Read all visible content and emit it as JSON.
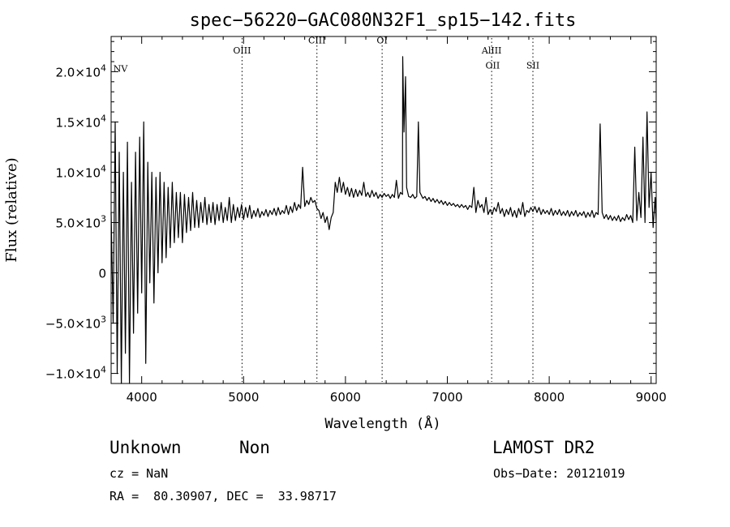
{
  "chart_data": {
    "type": "line",
    "title": "spec−56220−GAC080N32F1_sp15−142.fits",
    "xlabel": "Wavelength (Å)",
    "ylabel": "Flux (relative)",
    "xlim": [
      3700,
      9050
    ],
    "ylim": [
      -11000,
      23500
    ],
    "x_ticks": [
      {
        "value": 4000,
        "label": "4000"
      },
      {
        "value": 5000,
        "label": "5000"
      },
      {
        "value": 6000,
        "label": "6000"
      },
      {
        "value": 7000,
        "label": "7000"
      },
      {
        "value": 8000,
        "label": "8000"
      },
      {
        "value": 9000,
        "label": "9000"
      }
    ],
    "y_ticks": [
      {
        "value": -10000,
        "mantissa": "−1.0×10",
        "exp": "4"
      },
      {
        "value": -5000,
        "mantissa": "−5.0×10",
        "exp": "3"
      },
      {
        "value": 0,
        "mantissa": "0",
        "exp": ""
      },
      {
        "value": 5000,
        "mantissa": "5.0×10",
        "exp": "3"
      },
      {
        "value": 10000,
        "mantissa": "1.0×10",
        "exp": "4"
      },
      {
        "value": 15000,
        "mantissa": "1.5×10",
        "exp": "4"
      },
      {
        "value": 20000,
        "mantissa": "2.0×10",
        "exp": "4"
      }
    ],
    "lines": [
      {
        "label": "NV",
        "x": 3712,
        "dotted": false,
        "label_y": 20000
      },
      {
        "label": "OIII",
        "x": 4985,
        "dotted": true,
        "label_y": 21800
      },
      {
        "label": "CIII",
        "x": 5720,
        "dotted": true,
        "label_y": 22800
      },
      {
        "label": "OI",
        "x": 6360,
        "dotted": true,
        "label_y": 22800
      },
      {
        "label": "AlIII",
        "x": 7435,
        "dotted": true,
        "label_y": 21800
      },
      {
        "label": "OII",
        "x": 7445,
        "dotted": false,
        "label_y": 20300
      },
      {
        "label": "SII",
        "x": 7840,
        "dotted": true,
        "label_y": 20300
      }
    ],
    "series": [
      {
        "points": [
          [
            3700,
            6000
          ],
          [
            3720,
            -5000
          ],
          [
            3740,
            15000
          ],
          [
            3760,
            -10000
          ],
          [
            3780,
            12000
          ],
          [
            3800,
            -11000
          ],
          [
            3820,
            10000
          ],
          [
            3840,
            -8000
          ],
          [
            3860,
            13000
          ],
          [
            3880,
            -11500
          ],
          [
            3900,
            9000
          ],
          [
            3920,
            -6000
          ],
          [
            3940,
            12000
          ],
          [
            3960,
            -4000
          ],
          [
            3980,
            13500
          ],
          [
            4000,
            -2000
          ],
          [
            4020,
            15000
          ],
          [
            4040,
            -9000
          ],
          [
            4060,
            11000
          ],
          [
            4080,
            -1000
          ],
          [
            4100,
            10000
          ],
          [
            4120,
            -3000
          ],
          [
            4140,
            9500
          ],
          [
            4160,
            0
          ],
          [
            4180,
            10000
          ],
          [
            4200,
            1000
          ],
          [
            4220,
            9000
          ],
          [
            4240,
            1500
          ],
          [
            4260,
            8500
          ],
          [
            4280,
            2500
          ],
          [
            4300,
            9000
          ],
          [
            4320,
            3000
          ],
          [
            4340,
            8000
          ],
          [
            4360,
            3500
          ],
          [
            4380,
            8000
          ],
          [
            4400,
            3000
          ],
          [
            4420,
            7800
          ],
          [
            4440,
            4000
          ],
          [
            4460,
            7500
          ],
          [
            4480,
            4200
          ],
          [
            4500,
            8000
          ],
          [
            4520,
            4500
          ],
          [
            4540,
            7200
          ],
          [
            4560,
            4500
          ],
          [
            4580,
            7000
          ],
          [
            4600,
            5000
          ],
          [
            4620,
            7500
          ],
          [
            4640,
            4800
          ],
          [
            4660,
            6800
          ],
          [
            4680,
            5000
          ],
          [
            4700,
            7000
          ],
          [
            4720,
            4800
          ],
          [
            4740,
            6800
          ],
          [
            4760,
            5200
          ],
          [
            4780,
            7000
          ],
          [
            4800,
            5000
          ],
          [
            4820,
            6500
          ],
          [
            4840,
            5200
          ],
          [
            4860,
            7500
          ],
          [
            4880,
            5000
          ],
          [
            4900,
            6800
          ],
          [
            4920,
            5200
          ],
          [
            4940,
            6500
          ],
          [
            4960,
            5500
          ],
          [
            4980,
            6800
          ],
          [
            5000,
            5300
          ],
          [
            5020,
            6500
          ],
          [
            5040,
            5500
          ],
          [
            5060,
            6700
          ],
          [
            5080,
            5400
          ],
          [
            5100,
            6200
          ],
          [
            5120,
            5600
          ],
          [
            5140,
            6400
          ],
          [
            5160,
            5500
          ],
          [
            5180,
            6100
          ],
          [
            5200,
            5700
          ],
          [
            5220,
            6300
          ],
          [
            5240,
            5600
          ],
          [
            5260,
            6200
          ],
          [
            5280,
            5800
          ],
          [
            5300,
            6400
          ],
          [
            5320,
            5700
          ],
          [
            5340,
            6500
          ],
          [
            5360,
            5800
          ],
          [
            5380,
            6200
          ],
          [
            5400,
            5900
          ],
          [
            5420,
            6700
          ],
          [
            5440,
            5800
          ],
          [
            5460,
            6600
          ],
          [
            5480,
            6000
          ],
          [
            5500,
            7000
          ],
          [
            5520,
            6200
          ],
          [
            5540,
            6800
          ],
          [
            5560,
            6400
          ],
          [
            5580,
            10500
          ],
          [
            5600,
            6600
          ],
          [
            5620,
            7200
          ],
          [
            5640,
            6800
          ],
          [
            5660,
            7500
          ],
          [
            5680,
            7000
          ],
          [
            5700,
            7200
          ],
          [
            5720,
            6400
          ],
          [
            5740,
            6200
          ],
          [
            5760,
            5400
          ],
          [
            5780,
            6000
          ],
          [
            5800,
            5000
          ],
          [
            5820,
            5600
          ],
          [
            5840,
            4300
          ],
          [
            5860,
            5500
          ],
          [
            5880,
            6000
          ],
          [
            5900,
            9000
          ],
          [
            5920,
            8000
          ],
          [
            5940,
            9500
          ],
          [
            5960,
            8000
          ],
          [
            5980,
            9000
          ],
          [
            6000,
            7800
          ],
          [
            6020,
            8500
          ],
          [
            6040,
            7600
          ],
          [
            6060,
            8400
          ],
          [
            6080,
            7500
          ],
          [
            6100,
            8300
          ],
          [
            6120,
            7600
          ],
          [
            6140,
            8200
          ],
          [
            6160,
            7700
          ],
          [
            6180,
            9000
          ],
          [
            6200,
            7600
          ],
          [
            6220,
            8000
          ],
          [
            6240,
            7500
          ],
          [
            6260,
            8200
          ],
          [
            6280,
            7600
          ],
          [
            6300,
            8000
          ],
          [
            6320,
            7400
          ],
          [
            6340,
            7800
          ],
          [
            6360,
            7500
          ],
          [
            6380,
            7900
          ],
          [
            6400,
            7600
          ],
          [
            6420,
            7800
          ],
          [
            6440,
            7400
          ],
          [
            6460,
            7800
          ],
          [
            6480,
            7500
          ],
          [
            6500,
            9200
          ],
          [
            6520,
            7400
          ],
          [
            6540,
            8000
          ],
          [
            6560,
            7800
          ],
          [
            6562,
            21500
          ],
          [
            6575,
            14000
          ],
          [
            6590,
            19500
          ],
          [
            6600,
            8500
          ],
          [
            6620,
            7600
          ],
          [
            6640,
            7500
          ],
          [
            6660,
            7800
          ],
          [
            6680,
            7400
          ],
          [
            6700,
            7600
          ],
          [
            6716,
            15000
          ],
          [
            6731,
            8000
          ],
          [
            6760,
            7400
          ],
          [
            6780,
            7600
          ],
          [
            6800,
            7200
          ],
          [
            6820,
            7500
          ],
          [
            6840,
            7100
          ],
          [
            6860,
            7400
          ],
          [
            6880,
            7000
          ],
          [
            6900,
            7300
          ],
          [
            6920,
            6900
          ],
          [
            6940,
            7200
          ],
          [
            6960,
            6800
          ],
          [
            6980,
            7100
          ],
          [
            7000,
            6700
          ],
          [
            7020,
            7000
          ],
          [
            7040,
            6700
          ],
          [
            7060,
            6900
          ],
          [
            7080,
            6600
          ],
          [
            7100,
            6800
          ],
          [
            7120,
            6500
          ],
          [
            7140,
            6800
          ],
          [
            7160,
            6500
          ],
          [
            7180,
            6700
          ],
          [
            7200,
            6300
          ],
          [
            7220,
            6700
          ],
          [
            7240,
            6500
          ],
          [
            7260,
            8500
          ],
          [
            7280,
            6000
          ],
          [
            7300,
            7200
          ],
          [
            7320,
            6500
          ],
          [
            7340,
            6800
          ],
          [
            7360,
            6000
          ],
          [
            7380,
            7500
          ],
          [
            7400,
            5800
          ],
          [
            7420,
            6300
          ],
          [
            7440,
            5800
          ],
          [
            7460,
            6500
          ],
          [
            7480,
            6100
          ],
          [
            7500,
            7000
          ],
          [
            7520,
            5900
          ],
          [
            7540,
            6400
          ],
          [
            7560,
            5600
          ],
          [
            7580,
            6300
          ],
          [
            7600,
            5800
          ],
          [
            7620,
            6500
          ],
          [
            7640,
            5600
          ],
          [
            7660,
            6200
          ],
          [
            7680,
            5500
          ],
          [
            7700,
            6400
          ],
          [
            7720,
            5800
          ],
          [
            7740,
            7000
          ],
          [
            7760,
            5600
          ],
          [
            7780,
            6200
          ],
          [
            7800,
            6000
          ],
          [
            7820,
            6500
          ],
          [
            7840,
            6100
          ],
          [
            7860,
            6600
          ],
          [
            7880,
            6000
          ],
          [
            7900,
            6500
          ],
          [
            7920,
            5800
          ],
          [
            7940,
            6300
          ],
          [
            7960,
            5900
          ],
          [
            7980,
            6200
          ],
          [
            8000,
            5800
          ],
          [
            8020,
            6400
          ],
          [
            8040,
            5700
          ],
          [
            8060,
            6200
          ],
          [
            8080,
            5800
          ],
          [
            8100,
            6300
          ],
          [
            8120,
            5700
          ],
          [
            8140,
            6100
          ],
          [
            8160,
            5700
          ],
          [
            8180,
            6200
          ],
          [
            8200,
            5600
          ],
          [
            8220,
            6100
          ],
          [
            8240,
            5700
          ],
          [
            8260,
            6200
          ],
          [
            8280,
            5600
          ],
          [
            8300,
            6000
          ],
          [
            8320,
            5700
          ],
          [
            8340,
            6100
          ],
          [
            8360,
            5500
          ],
          [
            8380,
            6000
          ],
          [
            8400,
            5600
          ],
          [
            8420,
            6200
          ],
          [
            8440,
            5500
          ],
          [
            8460,
            6000
          ],
          [
            8480,
            5800
          ],
          [
            8500,
            14800
          ],
          [
            8520,
            6000
          ],
          [
            8540,
            5400
          ],
          [
            8560,
            5800
          ],
          [
            8580,
            5300
          ],
          [
            8600,
            5700
          ],
          [
            8620,
            5200
          ],
          [
            8640,
            5600
          ],
          [
            8660,
            5200
          ],
          [
            8680,
            5700
          ],
          [
            8700,
            5100
          ],
          [
            8720,
            5500
          ],
          [
            8740,
            5200
          ],
          [
            8760,
            5800
          ],
          [
            8780,
            5300
          ],
          [
            8800,
            5700
          ],
          [
            8820,
            5000
          ],
          [
            8840,
            12500
          ],
          [
            8860,
            5200
          ],
          [
            8880,
            8000
          ],
          [
            8900,
            5500
          ],
          [
            8920,
            13500
          ],
          [
            8940,
            5000
          ],
          [
            8960,
            16000
          ],
          [
            8980,
            6500
          ],
          [
            9000,
            10000
          ],
          [
            9020,
            4500
          ],
          [
            9040,
            7500
          ],
          [
            9050,
            5000
          ]
        ]
      }
    ]
  },
  "info": {
    "class": "Unknown",
    "subclass": "Non",
    "survey": "LAMOST DR2",
    "cz": "cz = NaN",
    "obs_date": "Obs−Date: 20121019",
    "coords": "RA =  80.30907, DEC =  33.98717"
  }
}
